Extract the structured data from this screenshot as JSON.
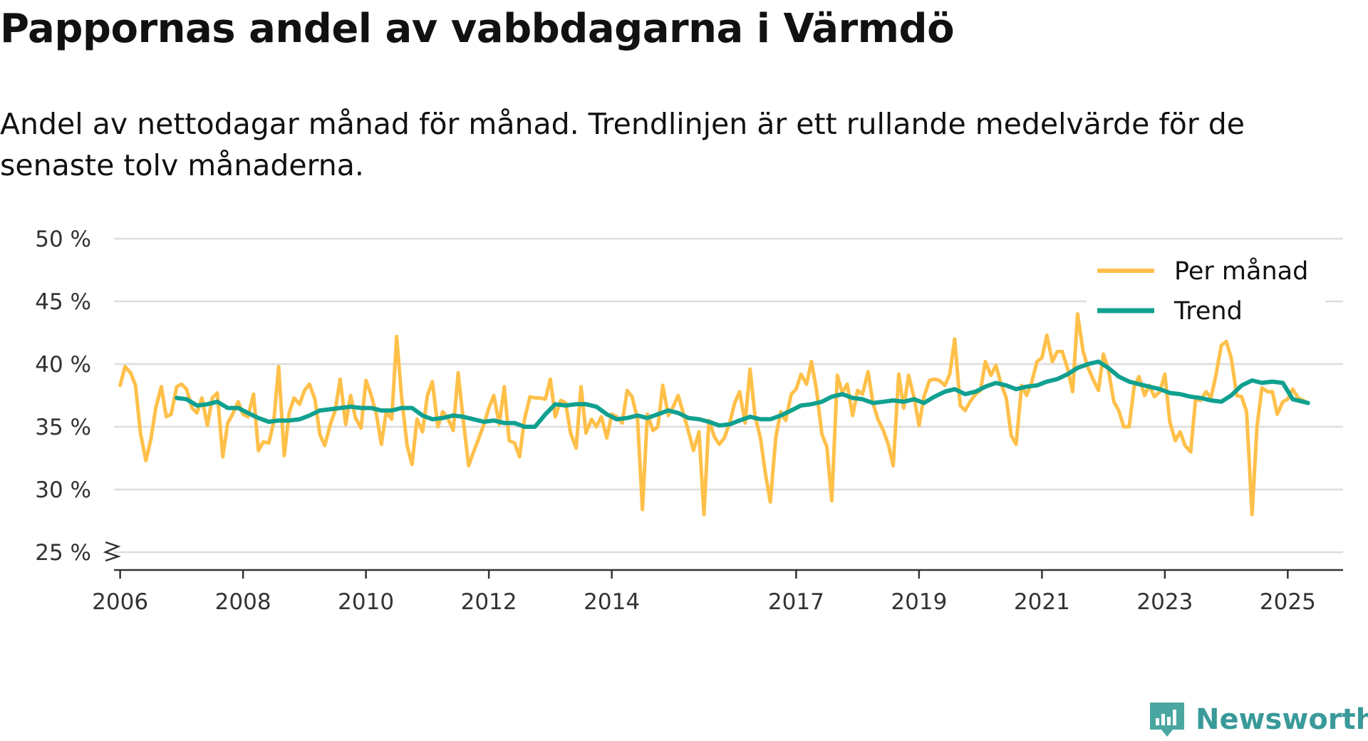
{
  "title": "Pappornas andel av vabbdagarna i Värmdö",
  "subtitle": "Andel av nettodagar månad för månad. Trendlinjen är ett rullande medelvärde för de senaste tolv månaderna.",
  "brand": {
    "name": "Newsworthy"
  },
  "colors": {
    "monthly": "#FFC04A",
    "trend": "#10A090",
    "grid": "#dddddd",
    "axis": "#333333"
  },
  "chart_data": {
    "type": "line",
    "title": "Pappornas andel av vabbdagarna i Värmdö",
    "ylabel": "",
    "xlabel": "",
    "ylim": [
      25,
      50
    ],
    "y_ticks": [
      25,
      30,
      35,
      40,
      45,
      50
    ],
    "y_tick_labels": [
      "25 %",
      "30 %",
      "35 %",
      "40 %",
      "45 %",
      "50 %"
    ],
    "y_axis_break": true,
    "xlim": [
      2005.9,
      2025.9
    ],
    "x_ticks": [
      2006,
      2008,
      2010,
      2012,
      2014,
      2017,
      2019,
      2021,
      2023,
      2025
    ],
    "x_tick_labels": [
      "2006",
      "2008",
      "2010",
      "2012",
      "2014",
      "2017",
      "2019",
      "2021",
      "2023",
      "2025"
    ],
    "legend": {
      "position": "top-right",
      "entries": [
        "Per månad",
        "Trend"
      ]
    },
    "series": [
      {
        "name": "Per månad",
        "x": [
          2006.0,
          2006.08,
          2006.17,
          2006.25,
          2006.33,
          2006.42,
          2006.5,
          2006.58,
          2006.67,
          2006.75,
          2006.83,
          2006.92,
          2007.0,
          2007.08,
          2007.17,
          2007.25,
          2007.33,
          2007.42,
          2007.5,
          2007.58,
          2007.67,
          2007.75,
          2007.83,
          2007.92,
          2008.0,
          2008.08,
          2008.17,
          2008.25,
          2008.33,
          2008.42,
          2008.5,
          2008.58,
          2008.67,
          2008.75,
          2008.83,
          2008.92,
          2009.0,
          2009.08,
          2009.17,
          2009.25,
          2009.33,
          2009.42,
          2009.5,
          2009.58,
          2009.67,
          2009.75,
          2009.83,
          2009.92,
          2010.0,
          2010.08,
          2010.17,
          2010.25,
          2010.33,
          2010.42,
          2010.5,
          2010.58,
          2010.67,
          2010.75,
          2010.83,
          2010.92,
          2011.0,
          2011.08,
          2011.17,
          2011.25,
          2011.33,
          2011.42,
          2011.5,
          2011.58,
          2011.67,
          2011.75,
          2011.83,
          2011.92,
          2012.0,
          2012.08,
          2012.17,
          2012.25,
          2012.33,
          2012.42,
          2012.5,
          2012.58,
          2012.67,
          2012.75,
          2012.83,
          2012.92,
          2013.0,
          2013.08,
          2013.17,
          2013.25,
          2013.33,
          2013.42,
          2013.5,
          2013.58,
          2013.67,
          2013.75,
          2013.83,
          2013.92,
          2014.0,
          2014.08,
          2014.17,
          2014.25,
          2014.33,
          2014.42,
          2014.5,
          2014.58,
          2014.67,
          2014.75,
          2014.83,
          2014.92,
          2015.0,
          2015.08,
          2015.17,
          2015.25,
          2015.33,
          2015.42,
          2015.5,
          2015.58,
          2015.67,
          2015.75,
          2015.83,
          2015.92,
          2016.0,
          2016.08,
          2016.17,
          2016.25,
          2016.33,
          2016.42,
          2016.5,
          2016.58,
          2016.67,
          2016.75,
          2016.83,
          2016.92,
          2017.0,
          2017.08,
          2017.17,
          2017.25,
          2017.33,
          2017.42,
          2017.5,
          2017.58,
          2017.67,
          2017.75,
          2017.83,
          2017.92,
          2018.0,
          2018.08,
          2018.17,
          2018.25,
          2018.33,
          2018.42,
          2018.5,
          2018.58,
          2018.67,
          2018.75,
          2018.83,
          2018.92,
          2019.0,
          2019.08,
          2019.17,
          2019.25,
          2019.33,
          2019.42,
          2019.5,
          2019.58,
          2019.67,
          2019.75,
          2019.83,
          2019.92,
          2020.0,
          2020.08,
          2020.17,
          2020.25,
          2020.33,
          2020.42,
          2020.5,
          2020.58,
          2020.67,
          2020.75,
          2020.83,
          2020.92,
          2021.0,
          2021.08,
          2021.17,
          2021.25,
          2021.33,
          2021.42,
          2021.5,
          2021.58,
          2021.67,
          2021.75,
          2021.83,
          2021.92,
          2022.0,
          2022.08,
          2022.17,
          2022.25,
          2022.33,
          2022.42,
          2022.5,
          2022.58,
          2022.67,
          2022.75,
          2022.83,
          2022.92,
          2023.0,
          2023.08,
          2023.17,
          2023.25,
          2023.33,
          2023.42,
          2023.5,
          2023.58,
          2023.67,
          2023.75,
          2023.83,
          2023.92,
          2024.0,
          2024.08,
          2024.17,
          2024.25,
          2024.33,
          2024.42,
          2024.5,
          2024.58,
          2024.67,
          2024.75,
          2024.83,
          2024.92,
          2025.0,
          2025.08,
          2025.17,
          2025.25,
          2025.33
        ],
        "values": [
          38.3,
          39.8,
          39.3,
          38.3,
          34.5,
          32.3,
          34.0,
          36.5,
          38.2,
          35.8,
          36.0,
          38.2,
          38.4,
          38.0,
          36.5,
          36.1,
          37.3,
          35.1,
          37.3,
          37.7,
          32.6,
          35.3,
          36.0,
          37.0,
          36.0,
          35.8,
          37.6,
          33.1,
          33.8,
          33.7,
          35.4,
          39.8,
          32.7,
          36.1,
          37.3,
          36.8,
          37.9,
          38.4,
          37.2,
          34.4,
          33.5,
          35.2,
          36.3,
          38.8,
          35.2,
          37.5,
          35.7,
          34.9,
          38.7,
          37.6,
          36.0,
          33.6,
          36.2,
          35.6,
          42.2,
          37.4,
          33.5,
          32.0,
          35.6,
          34.6,
          37.5,
          38.6,
          35.0,
          36.2,
          35.7,
          34.7,
          39.3,
          35.7,
          31.9,
          33.0,
          34.0,
          35.2,
          36.5,
          37.5,
          35.2,
          38.2,
          33.9,
          33.7,
          32.6,
          35.6,
          37.4,
          37.3,
          37.3,
          37.2,
          38.8,
          35.8,
          37.1,
          36.9,
          34.5,
          33.3,
          38.2,
          34.5,
          35.6,
          35.0,
          35.8,
          34.1,
          36.0,
          35.8,
          35.3,
          37.9,
          37.4,
          35.6,
          28.4,
          36.0,
          34.7,
          35.0,
          38.3,
          35.9,
          36.6,
          37.5,
          36.0,
          34.6,
          33.1,
          34.6,
          28.0,
          35.5,
          34.2,
          33.6,
          34.1,
          35.3,
          36.9,
          37.8,
          35.3,
          39.6,
          35.9,
          34.1,
          31.3,
          29.0,
          34.2,
          36.2,
          35.5,
          37.6,
          38.0,
          39.2,
          38.4,
          40.2,
          38.0,
          34.4,
          33.4,
          29.1,
          39.1,
          37.7,
          38.4,
          35.9,
          37.9,
          37.6,
          39.4,
          36.9,
          35.6,
          34.7,
          33.6,
          31.9,
          39.2,
          36.5,
          39.1,
          37.3,
          35.1,
          37.4,
          38.7,
          38.8,
          38.7,
          38.3,
          39.2,
          42.0,
          36.7,
          36.3,
          37.0,
          37.6,
          37.9,
          40.2,
          39.1,
          39.9,
          38.5,
          37.3,
          34.3,
          33.6,
          38.3,
          37.5,
          38.5,
          40.2,
          40.5,
          42.3,
          40.2,
          41.0,
          41.0,
          39.6,
          37.8,
          44.0,
          41.0,
          39.7,
          38.8,
          37.9,
          40.8,
          39.6,
          37.0,
          36.3,
          35.0,
          35.0,
          38.2,
          39.0,
          37.5,
          38.3,
          37.4,
          37.8,
          39.2,
          35.4,
          33.9,
          34.6,
          33.5,
          33.0,
          37.2,
          37.1,
          37.8,
          37.3,
          39.1,
          41.5,
          41.8,
          40.5,
          37.5,
          37.4,
          36.2,
          28.0,
          35.0,
          38.1,
          37.8,
          37.8,
          36.0,
          37.0,
          37.2,
          38.0,
          37.3,
          37.1,
          36.9
        ]
      },
      {
        "name": "Trend",
        "x": [
          2006.92,
          2007.08,
          2007.25,
          2007.42,
          2007.58,
          2007.75,
          2007.92,
          2008.08,
          2008.25,
          2008.42,
          2008.58,
          2008.75,
          2008.92,
          2009.08,
          2009.25,
          2009.42,
          2009.58,
          2009.75,
          2009.92,
          2010.08,
          2010.25,
          2010.42,
          2010.58,
          2010.75,
          2010.92,
          2011.08,
          2011.25,
          2011.42,
          2011.58,
          2011.75,
          2011.92,
          2012.08,
          2012.25,
          2012.42,
          2012.58,
          2012.75,
          2012.92,
          2013.08,
          2013.25,
          2013.42,
          2013.58,
          2013.75,
          2013.92,
          2014.08,
          2014.25,
          2014.42,
          2014.58,
          2014.75,
          2014.92,
          2015.08,
          2015.25,
          2015.42,
          2015.58,
          2015.75,
          2015.92,
          2016.08,
          2016.25,
          2016.42,
          2016.58,
          2016.75,
          2016.92,
          2017.08,
          2017.25,
          2017.42,
          2017.58,
          2017.75,
          2017.92,
          2018.08,
          2018.25,
          2018.42,
          2018.58,
          2018.75,
          2018.92,
          2019.08,
          2019.25,
          2019.42,
          2019.58,
          2019.75,
          2019.92,
          2020.08,
          2020.25,
          2020.42,
          2020.58,
          2020.75,
          2020.92,
          2021.08,
          2021.25,
          2021.42,
          2021.58,
          2021.75,
          2021.92,
          2022.08,
          2022.25,
          2022.42,
          2022.58,
          2022.75,
          2022.92,
          2023.08,
          2023.25,
          2023.42,
          2023.58,
          2023.75,
          2023.92,
          2024.08,
          2024.25,
          2024.42,
          2024.58,
          2024.75,
          2024.92,
          2025.08,
          2025.25,
          2025.33
        ],
        "values": [
          37.3,
          37.2,
          36.7,
          36.8,
          37.0,
          36.5,
          36.5,
          36.1,
          35.7,
          35.4,
          35.5,
          35.5,
          35.6,
          35.9,
          36.3,
          36.4,
          36.5,
          36.6,
          36.5,
          36.5,
          36.3,
          36.3,
          36.5,
          36.5,
          35.9,
          35.6,
          35.7,
          35.9,
          35.8,
          35.6,
          35.4,
          35.5,
          35.3,
          35.3,
          35.0,
          35.0,
          36.0,
          36.8,
          36.7,
          36.8,
          36.8,
          36.6,
          36.0,
          35.6,
          35.7,
          35.9,
          35.7,
          36.0,
          36.3,
          36.1,
          35.7,
          35.6,
          35.4,
          35.1,
          35.2,
          35.5,
          35.8,
          35.6,
          35.6,
          35.9,
          36.3,
          36.7,
          36.8,
          37.0,
          37.4,
          37.6,
          37.3,
          37.2,
          36.9,
          37.0,
          37.1,
          37.0,
          37.2,
          36.9,
          37.4,
          37.8,
          38.0,
          37.6,
          37.8,
          38.2,
          38.5,
          38.3,
          38.0,
          38.2,
          38.3,
          38.6,
          38.8,
          39.2,
          39.7,
          40.0,
          40.2,
          39.7,
          39.0,
          38.6,
          38.4,
          38.2,
          38.0,
          37.7,
          37.6,
          37.4,
          37.3,
          37.1,
          37.0,
          37.5,
          38.3,
          38.7,
          38.5,
          38.6,
          38.5,
          37.2,
          37.0,
          36.9
        ]
      }
    ]
  }
}
